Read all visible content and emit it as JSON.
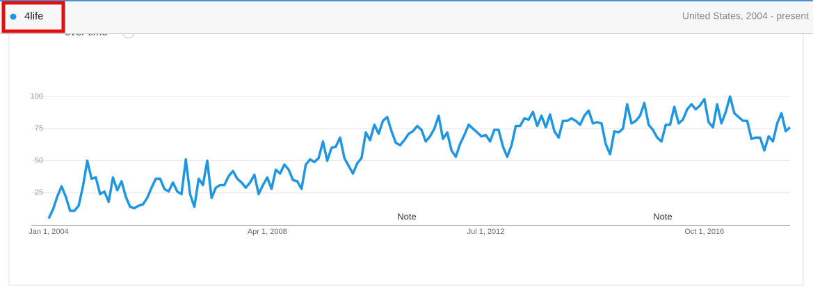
{
  "chart_data": {
    "type": "line",
    "title": "over time",
    "region": "United States, 2004 - present",
    "annotations": [
      "Note",
      "Note"
    ],
    "categories": [
      "Jan 1, 2004",
      null,
      null,
      null,
      null,
      null,
      null,
      null,
      null,
      null,
      null,
      null,
      null,
      null,
      null,
      null,
      null,
      null,
      null,
      null,
      null,
      null,
      null,
      null,
      null,
      null,
      null,
      null,
      null,
      null,
      null,
      null,
      null,
      null,
      null,
      null,
      null,
      null,
      null,
      null,
      null,
      null,
      null,
      null,
      null,
      null,
      null,
      null,
      null,
      null,
      null,
      "Apr 1, 2008",
      null,
      null,
      null,
      null,
      null,
      null,
      null,
      null,
      null,
      null,
      null,
      null,
      null,
      null,
      null,
      null,
      null,
      null,
      null,
      null,
      null,
      null,
      null,
      null,
      null,
      null,
      null,
      null,
      null,
      null,
      null,
      null,
      null,
      null,
      null,
      null,
      null,
      null,
      null,
      null,
      null,
      null,
      null,
      null,
      null,
      null,
      null,
      null,
      null,
      null,
      "Jul 1, 2012",
      null,
      null,
      null,
      null,
      null,
      null,
      null,
      null,
      null,
      null,
      null,
      null,
      null,
      null,
      null,
      null,
      null,
      null,
      null,
      null,
      null,
      null,
      null,
      null,
      null,
      null,
      null,
      null,
      null,
      null,
      null,
      null,
      null,
      null,
      null,
      null,
      null,
      null,
      null,
      null,
      null,
      null,
      null,
      null,
      null,
      null,
      null,
      null,
      null,
      null,
      "Oct 1, 2016",
      null,
      null,
      null,
      null,
      null,
      null,
      null,
      null,
      null,
      null,
      null,
      null,
      null,
      null,
      null,
      null,
      null,
      null,
      null,
      null
    ],
    "series": [
      {
        "name": "4life",
        "color": "#2196e0",
        "values": [
          5,
          12,
          22,
          30,
          22,
          11,
          11,
          15,
          30,
          50,
          36,
          37,
          24,
          26,
          18,
          37,
          27,
          34,
          22,
          14,
          13,
          15,
          16,
          21,
          29,
          36,
          36,
          28,
          26,
          33,
          26,
          24,
          51,
          24,
          14,
          36,
          31,
          50,
          21,
          29,
          31,
          31,
          38,
          42,
          36,
          33,
          29,
          33,
          39,
          24,
          31,
          37,
          28,
          43,
          40,
          47,
          43,
          35,
          34,
          28,
          47,
          51,
          49,
          52,
          65,
          50,
          60,
          61,
          68,
          52,
          46,
          40,
          48,
          52,
          72,
          66,
          78,
          71,
          81,
          84,
          73,
          64,
          62,
          66,
          71,
          73,
          77,
          74,
          65,
          69,
          75,
          85,
          67,
          72,
          58,
          53,
          63,
          70,
          78,
          75,
          72,
          69,
          70,
          65,
          74,
          74,
          61,
          53,
          62,
          77,
          77,
          83,
          82,
          88,
          77,
          85,
          76,
          86,
          73,
          68,
          81,
          81,
          83,
          81,
          78,
          85,
          89,
          79,
          80,
          79,
          63,
          55,
          73,
          72,
          75,
          94,
          79,
          81,
          85,
          95,
          78,
          74,
          68,
          65,
          78,
          78,
          92,
          79,
          82,
          90,
          94,
          90,
          93,
          98,
          80,
          76,
          94,
          79,
          88,
          100,
          87,
          84,
          81,
          81,
          67,
          68,
          68,
          58,
          69,
          65,
          79,
          87,
          73,
          76
        ]
      }
    ],
    "ylim": [
      0,
      100
    ],
    "yticks": [
      25,
      50,
      75,
      100
    ],
    "grid": true
  }
}
